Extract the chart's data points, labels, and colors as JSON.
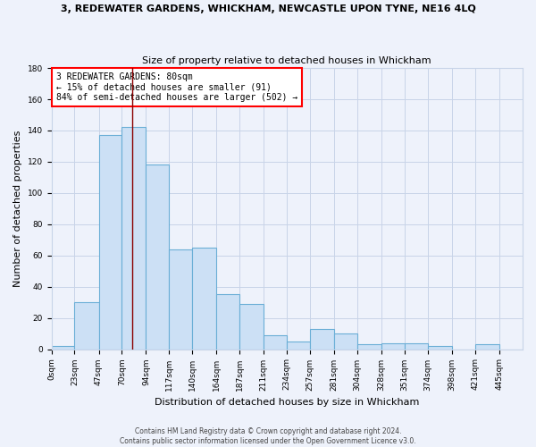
{
  "title": "3, REDEWATER GARDENS, WHICKHAM, NEWCASTLE UPON TYNE, NE16 4LQ",
  "subtitle": "Size of property relative to detached houses in Whickham",
  "xlabel": "Distribution of detached houses by size in Whickham",
  "ylabel": "Number of detached properties",
  "bins": [
    0,
    23,
    47,
    70,
    94,
    117,
    140,
    164,
    187,
    211,
    234,
    257,
    281,
    304,
    328,
    351,
    374,
    398,
    421,
    445,
    468
  ],
  "counts": [
    2,
    30,
    137,
    142,
    118,
    64,
    65,
    35,
    29,
    9,
    5,
    13,
    10,
    3,
    4,
    4,
    2,
    0,
    3,
    0
  ],
  "bar_facecolor": "#cce0f5",
  "bar_edgecolor": "#6aaed6",
  "red_line_x": 80,
  "annotation_text": "3 REDEWATER GARDENS: 80sqm\n← 15% of detached houses are smaller (91)\n84% of semi-detached houses are larger (502) →",
  "annotation_box_color": "white",
  "annotation_box_edgecolor": "red",
  "ylim": [
    0,
    180
  ],
  "yticks": [
    0,
    20,
    40,
    60,
    80,
    100,
    120,
    140,
    160,
    180
  ],
  "grid_color": "#c8d4e8",
  "footer_text": "Contains HM Land Registry data © Crown copyright and database right 2024.\nContains public sector information licensed under the Open Government Licence v3.0.",
  "bg_color": "#eef2fb",
  "title_fontsize": 8,
  "subtitle_fontsize": 8,
  "tick_fontsize": 6.5,
  "ylabel_fontsize": 8,
  "xlabel_fontsize": 8
}
